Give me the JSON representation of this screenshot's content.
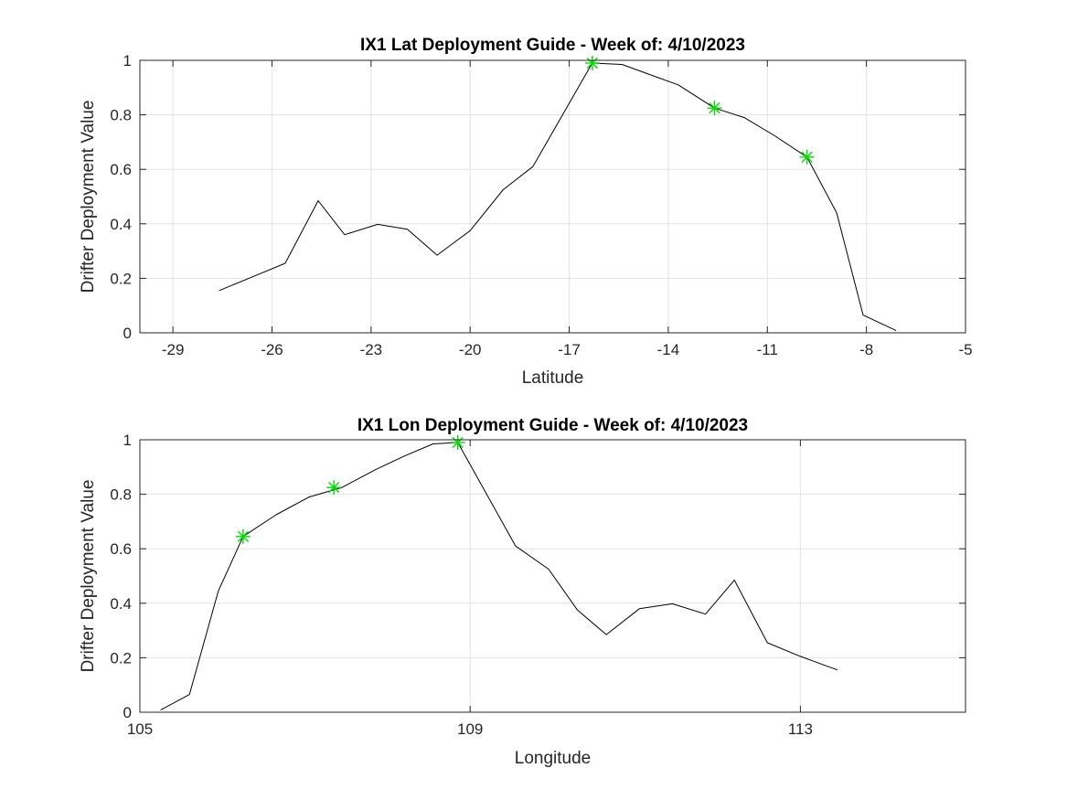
{
  "chart_data": [
    {
      "type": "line",
      "title": "IX1 Lat Deployment Guide - Week of: 4/10/2023",
      "xlabel": "Latitude",
      "ylabel": "Drifter Deployment Value",
      "xlim": [
        -30,
        -5
      ],
      "ylim": [
        0,
        1
      ],
      "xticks": [
        -29,
        -26,
        -23,
        -20,
        -17,
        -14,
        -11,
        -8,
        -5
      ],
      "yticks": [
        0,
        0.2,
        0.4,
        0.6,
        0.8,
        1
      ],
      "xtick_labels": [
        "-29",
        "-26",
        "-23",
        "-20",
        "-17",
        "-14",
        "-11",
        "-8",
        "-5"
      ],
      "ytick_labels": [
        "0",
        "0.2",
        "0.4",
        "0.6",
        "0.8",
        "1"
      ],
      "grid": true,
      "series": [
        {
          "color": "#000000",
          "x": [
            -27.6,
            -26.6,
            -25.6,
            -24.6,
            -23.8,
            -22.8,
            -21.9,
            -21.0,
            -20.0,
            -19.0,
            -18.1,
            -17.2,
            -16.3,
            -15.4,
            -14.5,
            -13.7,
            -12.6,
            -11.7,
            -10.8,
            -9.8,
            -8.9,
            -8.1,
            -7.1
          ],
          "y": [
            0.155,
            0.205,
            0.255,
            0.485,
            0.36,
            0.398,
            0.38,
            0.285,
            0.375,
            0.525,
            0.61,
            0.8,
            0.99,
            0.985,
            0.945,
            0.91,
            0.825,
            0.79,
            0.725,
            0.645,
            0.44,
            0.065,
            0.008
          ]
        }
      ],
      "markers": {
        "color": "#00dd00",
        "symbol": "asterisk",
        "x": [
          -16.3,
          -12.6,
          -9.8
        ],
        "y": [
          0.99,
          0.825,
          0.645
        ]
      }
    },
    {
      "type": "line",
      "title": "IX1 Lon Deployment Guide - Week of: 4/10/2023",
      "xlabel": "Longitude",
      "ylabel": "Drifter Deployment Value",
      "xlim": [
        105,
        115
      ],
      "ylim": [
        0,
        1
      ],
      "xticks": [
        105,
        109,
        113
      ],
      "yticks": [
        0,
        0.2,
        0.4,
        0.6,
        0.8,
        1
      ],
      "xtick_labels": [
        "105",
        "109",
        "113"
      ],
      "ytick_labels": [
        "0",
        "0.2",
        "0.4",
        "0.6",
        "0.8",
        "1"
      ],
      "grid": true,
      "series": [
        {
          "color": "#000000",
          "x": [
            105.25,
            105.6,
            105.95,
            106.25,
            106.65,
            107.05,
            107.45,
            107.85,
            108.2,
            108.55,
            108.85,
            109.2,
            109.55,
            109.95,
            110.3,
            110.65,
            111.05,
            111.45,
            111.85,
            112.2,
            112.6,
            113.0,
            113.45
          ],
          "y": [
            0.008,
            0.065,
            0.445,
            0.645,
            0.725,
            0.79,
            0.825,
            0.89,
            0.94,
            0.985,
            0.99,
            0.8,
            0.61,
            0.525,
            0.375,
            0.285,
            0.38,
            0.398,
            0.36,
            0.485,
            0.255,
            0.205,
            0.155
          ]
        }
      ],
      "markers": {
        "color": "#00dd00",
        "symbol": "asterisk",
        "x": [
          106.25,
          107.35,
          108.85
        ],
        "y": [
          0.645,
          0.825,
          0.99
        ]
      }
    }
  ]
}
